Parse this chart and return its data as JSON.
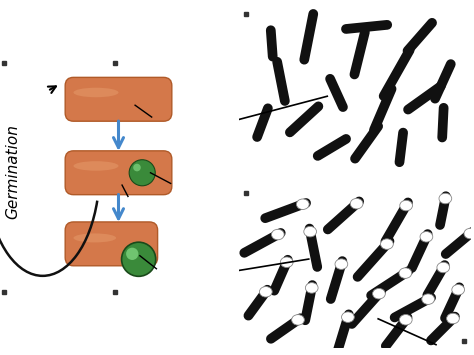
{
  "background_color": "#ffffff",
  "bacterium_color": "#d4784a",
  "bacterium_highlight": "#e8a070",
  "bacterium_edge": "#b05a28",
  "spore_color_inner": "#3a8a3a",
  "spore_highlight": "#88dd88",
  "arrow_color": "#4488cc",
  "curve_arrow_color": "#111111",
  "germination_label": "Germination",
  "germination_fontsize": 11,
  "top_panel_bg": "#c8c8c8",
  "bot_panel_bg": "#b0b0b0",
  "rod_color": "#111111",
  "spore_white": "#ffffff"
}
